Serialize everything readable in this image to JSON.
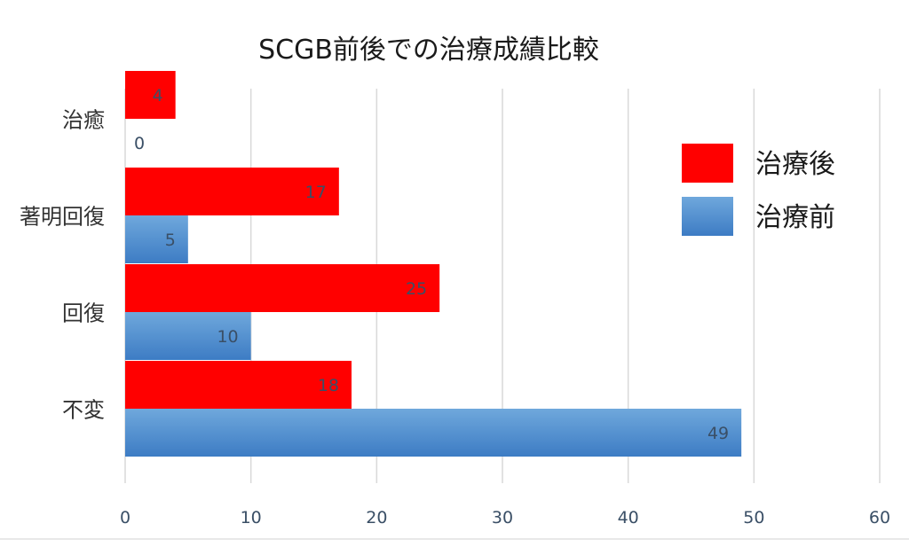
{
  "chart_data": {
    "type": "bar",
    "orientation": "horizontal",
    "title": "SCGB前後での治療成績比較",
    "xlabel": "",
    "ylabel": "",
    "categories": [
      "治癒",
      "著明回復",
      "回復",
      "不変"
    ],
    "series": [
      {
        "name": "治療後",
        "color": "#ff0000",
        "values": [
          4,
          17,
          25,
          18
        ]
      },
      {
        "name": "治療前",
        "color": "#5b9bd5",
        "values": [
          0,
          5,
          10,
          49
        ]
      }
    ],
    "xlim": [
      0,
      60
    ],
    "xticks": [
      "0",
      "10",
      "20",
      "30",
      "40",
      "50",
      "60"
    ],
    "grid": true,
    "legend_position": "right"
  }
}
